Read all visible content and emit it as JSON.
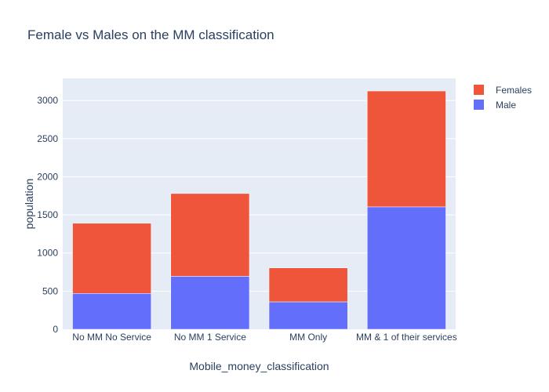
{
  "chart_data": {
    "type": "bar",
    "barmode": "stack",
    "title": "Female vs Males on the MM classification",
    "xlabel": "Mobile_money_classification",
    "ylabel": "population",
    "categories": [
      "No MM No Service",
      "No MM 1 Service",
      "MM Only",
      "MM & 1 of their services"
    ],
    "series": [
      {
        "name": "Male",
        "values": [
          470,
          695,
          360,
          1605
        ],
        "color": "#636efa"
      },
      {
        "name": "Females",
        "values": [
          920,
          1085,
          445,
          1520
        ],
        "color": "#ef553b"
      }
    ],
    "legend_order": [
      "Females",
      "Male"
    ],
    "ylim": [
      0,
      3290
    ],
    "yticks": [
      0,
      500,
      1000,
      1500,
      2000,
      2500,
      3000
    ],
    "grid": true,
    "legend_position": "top-right",
    "plot_background": "#e5ecf6"
  }
}
